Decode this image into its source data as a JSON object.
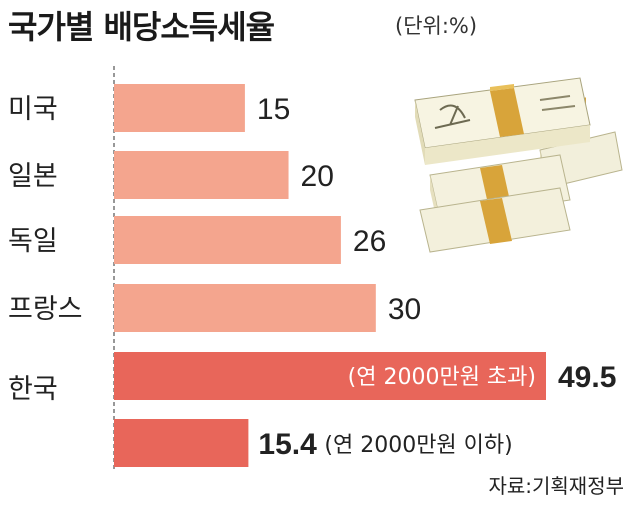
{
  "header": {
    "title": "국가별 배당소득세율",
    "unit": "(단위:%)"
  },
  "source": "자료:기획재정부",
  "colors": {
    "bar_light": "#f4a58e",
    "bar_dark": "#e8665a",
    "money_band": "#d8a43a"
  },
  "image": {
    "icon": "money-stack-icon"
  },
  "chart_data": {
    "type": "bar",
    "orientation": "horizontal",
    "title": "국가별 배당소득세율",
    "unit": "(단위:%)",
    "xlim": [
      0,
      55
    ],
    "bars": [
      {
        "category": "미국",
        "value": 15,
        "value_label": "15",
        "note": "",
        "color": "#f4a58e"
      },
      {
        "category": "일본",
        "value": 20,
        "value_label": "20",
        "note": "",
        "color": "#f4a58e"
      },
      {
        "category": "독일",
        "value": 26,
        "value_label": "26",
        "note": "",
        "color": "#f4a58e"
      },
      {
        "category": "프랑스",
        "value": 30,
        "value_label": "30",
        "note": "",
        "color": "#f4a58e"
      },
      {
        "category": "한국",
        "value": 49.5,
        "value_label": "49.5",
        "note": "(연 2000만원 초과)",
        "color": "#e8665a"
      },
      {
        "category": "",
        "value": 15.4,
        "value_label": "15.4",
        "note": "(연 2000만원 이하)",
        "color": "#e8665a"
      }
    ]
  }
}
